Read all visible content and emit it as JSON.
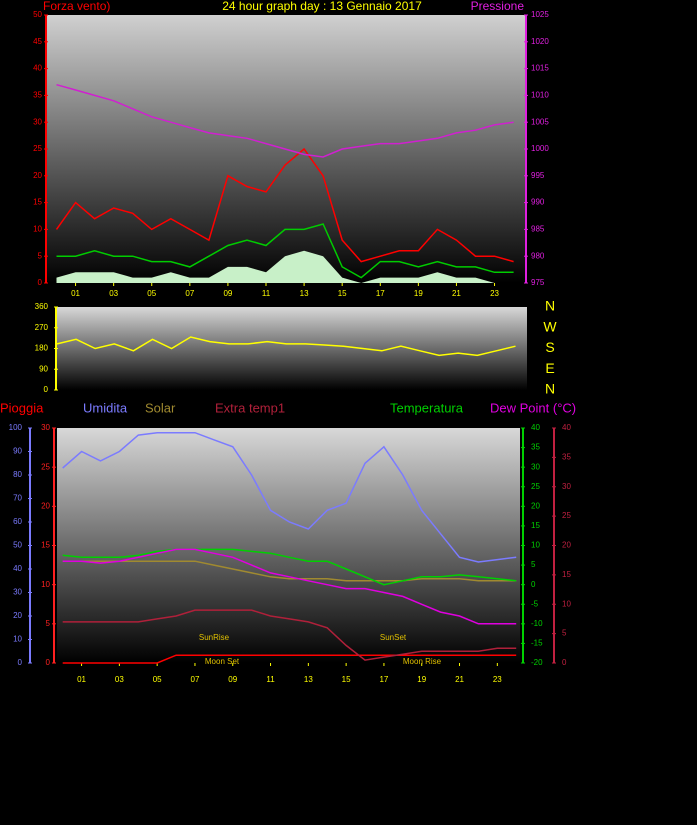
{
  "chart_data": [
    {
      "type": "line",
      "title": "24 hour graph day : 13 Gennaio 2017",
      "title_color": "#ffff00",
      "ylabel": "Forza vento)",
      "y2label": "Pressione",
      "x": [
        0,
        1,
        2,
        3,
        4,
        5,
        6,
        7,
        8,
        9,
        10,
        11,
        12,
        13,
        14,
        15,
        16,
        17,
        18,
        19,
        20,
        21,
        22,
        23,
        24
      ],
      "xlim": [
        -0.5,
        24.6
      ],
      "xticks": [
        {
          "value": 1,
          "label": "01"
        },
        {
          "value": 3,
          "label": "03"
        },
        {
          "value": 5,
          "label": "05"
        },
        {
          "value": 7,
          "label": "07"
        },
        {
          "value": 9,
          "label": "09"
        },
        {
          "value": 11,
          "label": "11"
        },
        {
          "value": 13,
          "label": "13"
        },
        {
          "value": 15,
          "label": "15"
        },
        {
          "value": 17,
          "label": "17"
        },
        {
          "value": 19,
          "label": "19"
        },
        {
          "value": 21,
          "label": "21"
        },
        {
          "value": 23,
          "label": "23"
        }
      ],
      "x_color": "#ffff00",
      "ylim": [
        0,
        50
      ],
      "yticks": [
        0,
        5,
        10,
        15,
        20,
        25,
        30,
        35,
        40,
        45,
        50
      ],
      "y_color": "#ff0000",
      "y2lim": [
        975,
        1025
      ],
      "y2ticks": [
        975,
        980,
        985,
        990,
        995,
        1000,
        1005,
        1010,
        1015,
        1020,
        1025
      ],
      "y2_color": "#e020e0",
      "series": [
        {
          "color": "#c8f0c8",
          "fill": true,
          "values": [
            1,
            2,
            2,
            2,
            1,
            1,
            2,
            1,
            1,
            3,
            3,
            2,
            5,
            6,
            5,
            1,
            0,
            1,
            1,
            1,
            2,
            1,
            1,
            0,
            0
          ]
        },
        {
          "color": "#ff0000",
          "values": [
            10,
            15,
            12,
            14,
            13,
            10,
            12,
            10,
            8,
            20,
            18,
            17,
            22,
            25,
            20,
            8,
            4,
            5,
            6,
            6,
            10,
            8,
            5,
            5,
            4
          ]
        },
        {
          "color": "#00cc00",
          "values": [
            5,
            5,
            6,
            5,
            5,
            4,
            4,
            3,
            5,
            7,
            8,
            7,
            10,
            10,
            11,
            3,
            1,
            4,
            4,
            3,
            4,
            3,
            3,
            2,
            2
          ]
        },
        {
          "color": "#d020d0",
          "axis": "y2",
          "values": [
            1012,
            1011,
            1010,
            1009,
            1007.5,
            1006,
            1005,
            1004,
            1003,
            1002.5,
            1002,
            1001,
            1000,
            999,
            998.5,
            1000,
            1000.5,
            1001,
            1001,
            1001.5,
            1002,
            1003,
            1003.5,
            1004.5,
            1005
          ]
        }
      ]
    },
    {
      "type": "line",
      "x": [
        0,
        1,
        2,
        3,
        4,
        5,
        6,
        7,
        8,
        9,
        10,
        11,
        12,
        13,
        14,
        15,
        16,
        17,
        18,
        19,
        20,
        21,
        22,
        23,
        24
      ],
      "xlim": [
        0,
        24.6
      ],
      "ylim": [
        0,
        360
      ],
      "yticks": [
        0,
        90,
        180,
        270,
        360
      ],
      "y_color": "#ffff00",
      "y2lim": [
        0,
        360
      ],
      "y2ticks": [
        {
          "value": 360,
          "label": "N"
        },
        {
          "value": 270,
          "label": "W"
        },
        {
          "value": 180,
          "label": "S"
        },
        {
          "value": 90,
          "label": "E"
        },
        {
          "value": 0,
          "label": "N"
        }
      ],
      "y2_color": "#ffff00",
      "series": [
        {
          "color": "#ffff00",
          "values": [
            200,
            220,
            180,
            200,
            170,
            220,
            180,
            230,
            210,
            200,
            200,
            210,
            200,
            200,
            195,
            190,
            180,
            170,
            190,
            170,
            150,
            160,
            150,
            170,
            190
          ]
        }
      ]
    },
    {
      "type": "line",
      "x": [
        0,
        1,
        2,
        3,
        4,
        5,
        6,
        7,
        8,
        9,
        10,
        11,
        12,
        13,
        14,
        15,
        16,
        17,
        18,
        19,
        20,
        21,
        22,
        23,
        24
      ],
      "xlim": [
        -0.3,
        24.2
      ],
      "xticks": [
        {
          "value": 1,
          "label": "01"
        },
        {
          "value": 3,
          "label": "03"
        },
        {
          "value": 5,
          "label": "05"
        },
        {
          "value": 7,
          "label": "07"
        },
        {
          "value": 9,
          "label": "09"
        },
        {
          "value": 11,
          "label": "11"
        },
        {
          "value": 13,
          "label": "13"
        },
        {
          "value": 15,
          "label": "15"
        },
        {
          "value": 17,
          "label": "17"
        },
        {
          "value": 19,
          "label": "19"
        },
        {
          "value": 21,
          "label": "21"
        },
        {
          "value": 23,
          "label": "23"
        }
      ],
      "x_color": "#ffff00",
      "ylim": [
        0,
        100
      ],
      "yticks": [
        0,
        10,
        20,
        30,
        40,
        50,
        60,
        70,
        80,
        90,
        100
      ],
      "y_color": "#7b7bff",
      "y2lim": [
        0,
        30
      ],
      "y2ticks": [
        0,
        5,
        10,
        15,
        20,
        25,
        30
      ],
      "y2_color": "#ff2020",
      "y3lim": [
        -20,
        40
      ],
      "y3ticks": [
        -20,
        -15,
        -10,
        -5,
        0,
        5,
        10,
        15,
        20,
        25,
        30,
        35,
        40
      ],
      "y3_color": "#00d000",
      "y4lim": [
        0,
        40
      ],
      "y4ticks": [
        0,
        5,
        10,
        15,
        20,
        25,
        30,
        35,
        40
      ],
      "y4_color": "#c02040",
      "series": [
        {
          "name": "Pioggia",
          "color": "#ff0000",
          "axis": "y2",
          "values": [
            0,
            0,
            0,
            0,
            0,
            0,
            1,
            1,
            1,
            1,
            1,
            1,
            1,
            1,
            1,
            1,
            1,
            1,
            1,
            1,
            1,
            1,
            1,
            1,
            1
          ]
        },
        {
          "name": "Umidita",
          "color": "#7b7bff",
          "values": [
            83,
            90,
            86,
            90,
            97,
            98,
            98,
            98,
            95,
            92,
            80,
            65,
            60,
            57,
            65,
            68,
            85,
            92,
            80,
            65,
            55,
            45,
            43,
            44,
            45
          ]
        },
        {
          "name": "Solar",
          "color": "#a08a30",
          "axis": "y3",
          "values": [
            6,
            6,
            6,
            6,
            6,
            6,
            6,
            6,
            5,
            4,
            3,
            2,
            1.5,
            1.5,
            1.5,
            1,
            1,
            1,
            1,
            1.5,
            1.5,
            1.5,
            1,
            1,
            1
          ]
        },
        {
          "name": "Extra temp1",
          "color": "#b0203a",
          "axis": "y4",
          "values": [
            7,
            7,
            7,
            7,
            7,
            7.5,
            8,
            9,
            9,
            9,
            9,
            8,
            7.5,
            7,
            6,
            3,
            0.5,
            1,
            1.5,
            2,
            2,
            2,
            2,
            2.5,
            2.5
          ]
        },
        {
          "name": "Temperatura",
          "color": "#00d000",
          "axis": "y3",
          "values": [
            7.5,
            7,
            7,
            7,
            7.5,
            8.5,
            9,
            9,
            9,
            9,
            8.5,
            8,
            7,
            6,
            6,
            4,
            2,
            0,
            1,
            2,
            2,
            2.5,
            2,
            1.5,
            1
          ]
        },
        {
          "name": "Dew Point (°C)",
          "color": "#e000e0",
          "axis": "y3",
          "values": [
            6,
            6,
            5.5,
            6,
            7,
            8,
            9,
            9,
            8,
            7,
            5,
            3,
            2,
            1,
            0,
            -1,
            -1,
            -2,
            -3,
            -5,
            -7,
            -8,
            -10,
            -10,
            -10
          ]
        }
      ],
      "annotations": [
        "SunRise",
        "SunSet",
        "Moon Set",
        "Moon Rise"
      ]
    }
  ]
}
